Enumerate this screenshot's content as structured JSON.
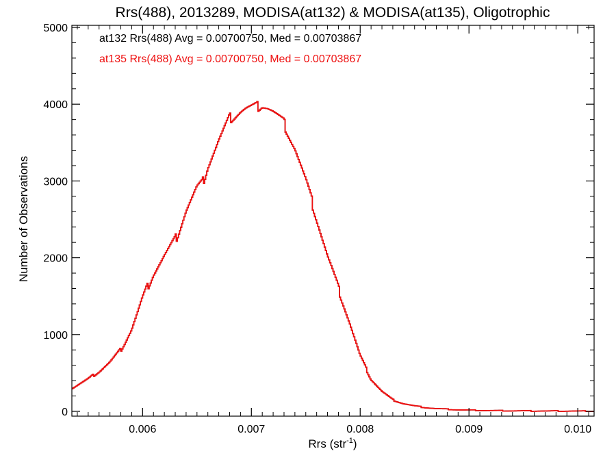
{
  "chart_data": {
    "type": "line",
    "title": "Rrs(488), 2013289, MODISA(at132) & MODISA(at135), Oligotrophic",
    "xlabel_base": "Rrs (str",
    "xlabel_sup": "-1",
    "xlabel_close": ")",
    "ylabel": "Number of Observations",
    "xlim": [
      0.00535,
      0.01015
    ],
    "ylim": [
      0,
      5000
    ],
    "x_ticks": [
      0.006,
      0.007,
      0.008,
      0.009,
      0.01
    ],
    "x_tick_labels": [
      "0.006",
      "0.007",
      "0.008",
      "0.009",
      "0.010"
    ],
    "y_ticks": [
      0,
      1000,
      2000,
      3000,
      4000,
      5000
    ],
    "y_tick_labels": [
      "0",
      "1000",
      "2000",
      "3000",
      "4000",
      "5000"
    ],
    "grid": false,
    "legend_placement": "top-left",
    "annotations": [
      {
        "text": "at132 Rrs(488) Avg = 0.00700750, Med = 0.00703867",
        "color": "#000000"
      },
      {
        "text": "at135 Rrs(488) Avg = 0.00700750, Med = 0.00703867",
        "color": "#ee1111"
      }
    ],
    "series": [
      {
        "color": "#ee1111",
        "x": [
          0.00535,
          0.0055,
          0.0056,
          0.0057,
          0.0058,
          0.0059,
          0.006,
          0.0061,
          0.0062,
          0.0063,
          0.0064,
          0.0065,
          0.00655,
          0.0066,
          0.0067,
          0.0068,
          0.00685,
          0.0069,
          0.00695,
          0.007,
          0.00705,
          0.0071,
          0.00715,
          0.0072,
          0.0073,
          0.0074,
          0.0075,
          0.0076,
          0.0077,
          0.0078,
          0.0079,
          0.008,
          0.0081,
          0.0082,
          0.0083,
          0.0084,
          0.0085,
          0.0086,
          0.0087,
          0.0088,
          0.0089,
          0.009,
          0.0092,
          0.0094,
          0.0096,
          0.0098,
          0.01,
          0.01015
        ],
        "y": [
          300,
          420,
          520,
          640,
          800,
          1070,
          1470,
          1800,
          2020,
          2220,
          2620,
          2900,
          2960,
          3200,
          3520,
          3810,
          3860,
          3910,
          3940,
          3950,
          3960,
          4000,
          3960,
          3900,
          3750,
          3430,
          3000,
          2520,
          2020,
          1600,
          1170,
          720,
          420,
          260,
          150,
          100,
          70,
          50,
          35,
          28,
          20,
          16,
          10,
          7,
          5,
          4,
          3,
          2
        ]
      },
      {
        "color": "#000000",
        "x": [
          0.00535,
          0.0055,
          0.0056,
          0.0057,
          0.0058,
          0.0059,
          0.006,
          0.0061,
          0.0062,
          0.0063,
          0.0064,
          0.0065,
          0.00655,
          0.0066,
          0.0067,
          0.0068,
          0.00685,
          0.0069,
          0.00695,
          0.007,
          0.00705,
          0.0071,
          0.00715,
          0.0072,
          0.0073,
          0.0074,
          0.0075,
          0.0076,
          0.0077,
          0.0078,
          0.0079,
          0.008,
          0.0081,
          0.0082,
          0.0083,
          0.0084,
          0.0085,
          0.0086,
          0.0087,
          0.0088,
          0.0089,
          0.009,
          0.0092,
          0.0094,
          0.0096,
          0.0098,
          0.01,
          0.01015
        ],
        "y": [
          300,
          420,
          520,
          640,
          800,
          1070,
          1470,
          1800,
          2020,
          2220,
          2620,
          2900,
          2960,
          3200,
          3520,
          3810,
          3860,
          3910,
          3940,
          3950,
          3960,
          4000,
          3960,
          3900,
          3750,
          3430,
          3000,
          2520,
          2020,
          1600,
          1170,
          720,
          420,
          260,
          150,
          100,
          70,
          50,
          35,
          28,
          20,
          16,
          10,
          7,
          5,
          4,
          3,
          2
        ]
      }
    ]
  }
}
